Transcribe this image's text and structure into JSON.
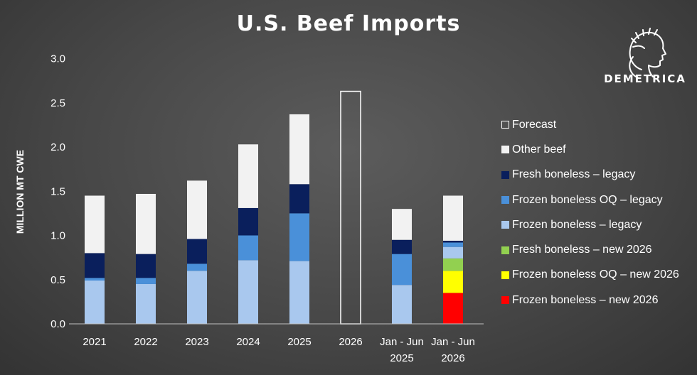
{
  "chart_data": {
    "type": "bar",
    "stacked": true,
    "title": "U.S. Beef Imports",
    "ylabel": "MILLION MT CWE",
    "xlabel": "",
    "ylim": [
      0,
      3.0
    ],
    "yticks": [
      "0.0",
      "0.5",
      "1.0",
      "1.5",
      "2.0",
      "2.5",
      "3.0"
    ],
    "grid": false,
    "legend_position": "right",
    "categories": [
      "2021",
      "2022",
      "2023",
      "2024",
      "2025",
      "2026",
      "Jan - Jun\n2025",
      "Jan - Jun\n2026"
    ],
    "category_lines": [
      [
        "2021"
      ],
      [
        "2022"
      ],
      [
        "2023"
      ],
      [
        "2024"
      ],
      [
        "2025"
      ],
      [
        "2026"
      ],
      [
        "Jan - Jun",
        "2025"
      ],
      [
        "Jan - Jun",
        "2026"
      ]
    ],
    "series": [
      {
        "name": "Frozen boneless – new 2026",
        "color": "#ff0000",
        "values": [
          0,
          0,
          0,
          0,
          0,
          0,
          0,
          0.35
        ]
      },
      {
        "name": "Frozen boneless OQ – new 2026",
        "color": "#ffff00",
        "values": [
          0,
          0,
          0,
          0,
          0,
          0,
          0,
          0.25
        ]
      },
      {
        "name": "Fresh boneless – new 2026",
        "color": "#92d050",
        "values": [
          0,
          0,
          0,
          0,
          0,
          0,
          0,
          0.14
        ]
      },
      {
        "name": "Frozen boneless – legacy",
        "color": "#a9c8ee",
        "values": [
          0.49,
          0.45,
          0.6,
          0.72,
          0.71,
          0,
          0.44,
          0.13
        ]
      },
      {
        "name": "Frozen boneless OQ – legacy",
        "color": "#4a90d9",
        "values": [
          0.03,
          0.07,
          0.08,
          0.28,
          0.54,
          0,
          0.35,
          0.05
        ]
      },
      {
        "name": "Fresh boneless – legacy",
        "color": "#0a1f5c",
        "values": [
          0.28,
          0.27,
          0.28,
          0.31,
          0.33,
          0,
          0.16,
          0.02
        ]
      },
      {
        "name": "Other beef",
        "color": "#f2f2f2",
        "values": [
          0.65,
          0.68,
          0.66,
          0.72,
          0.79,
          0,
          0.35,
          0.51
        ]
      },
      {
        "name": "Forecast",
        "color": "#ffffff",
        "outline": true,
        "values": [
          0,
          0,
          0,
          0,
          0,
          2.63,
          0,
          0
        ]
      }
    ],
    "legend_order": [
      "Forecast",
      "Other beef",
      "Fresh boneless – legacy",
      "Frozen boneless OQ – legacy",
      "Frozen boneless – legacy",
      "Fresh boneless – new 2026",
      "Frozen boneless OQ – new 2026",
      "Frozen boneless – new 2026"
    ]
  },
  "logo": {
    "text": "DEMETRICA",
    "icon": "classical-head-laurel-icon"
  }
}
